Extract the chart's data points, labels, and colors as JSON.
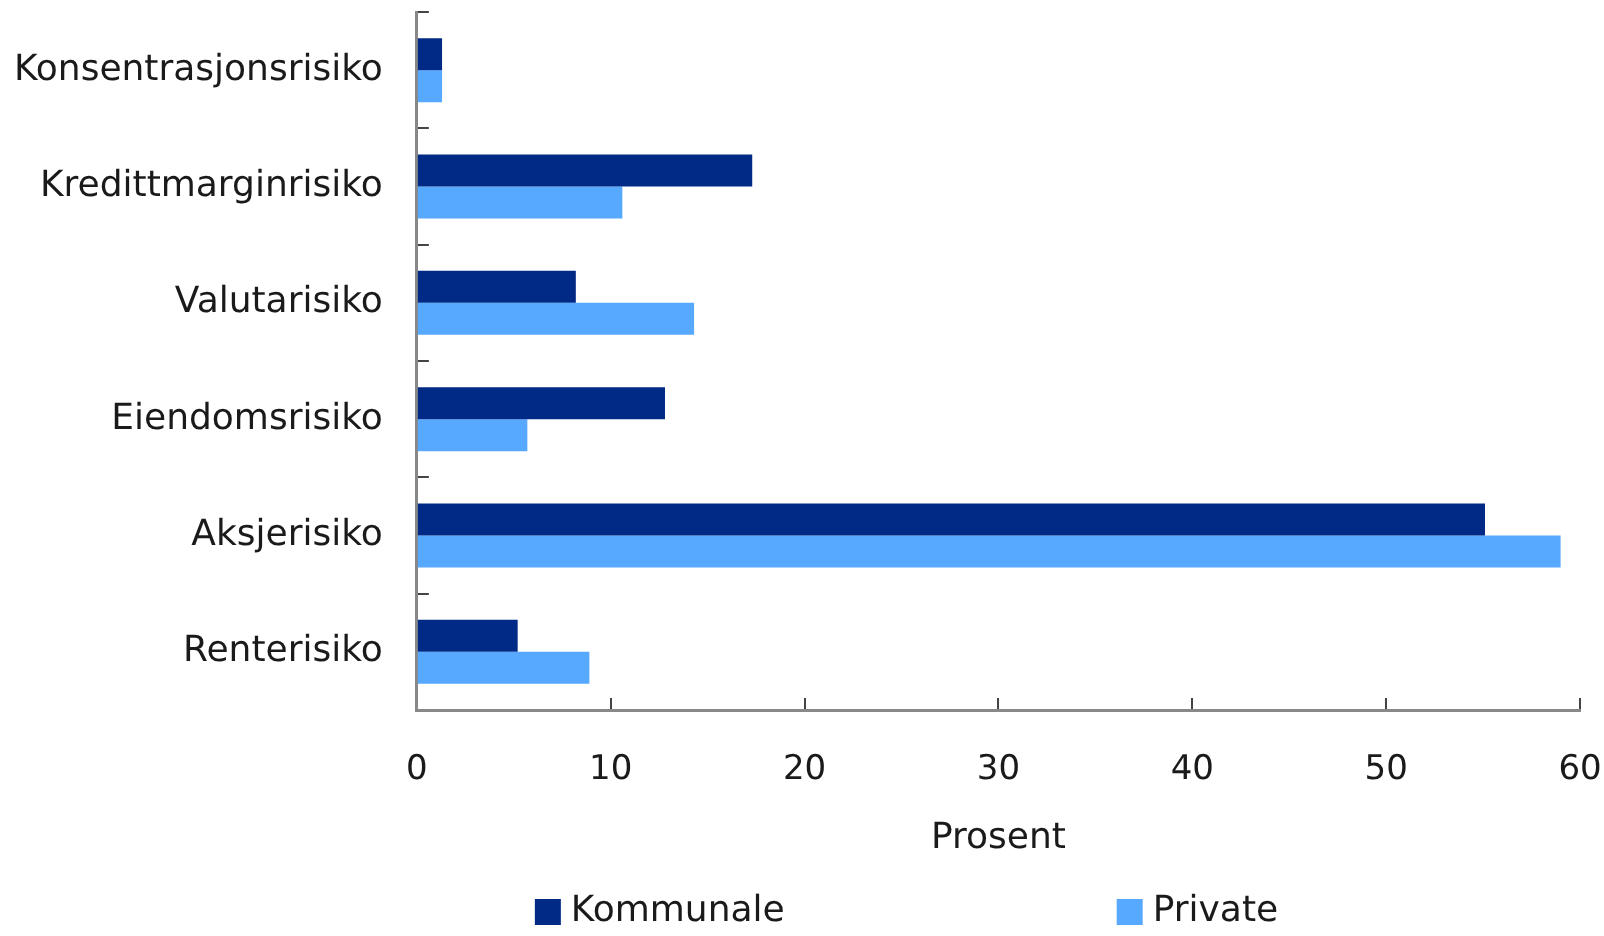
{
  "chart_data": {
    "type": "bar",
    "orientation": "horizontal",
    "categories": [
      "Konsentrasjonsrisiko",
      "Kredittmarginrisiko",
      "Valutarisiko",
      "Eiendomsrisiko",
      "Aksjerisiko",
      "Renterisiko"
    ],
    "series": [
      {
        "name": "Kommunale",
        "color": "#002a85",
        "values": [
          1.3,
          17.3,
          8.2,
          12.8,
          55.1,
          5.2
        ]
      },
      {
        "name": "Private",
        "color": "#57a9ff",
        "values": [
          1.3,
          10.6,
          14.3,
          5.7,
          59.0,
          8.9
        ]
      }
    ],
    "xlabel": "Prosent",
    "xlim": [
      0,
      60
    ],
    "xticks": [
      0,
      10,
      20,
      30,
      40,
      50,
      60
    ],
    "grid": false,
    "legend": "bottom"
  }
}
